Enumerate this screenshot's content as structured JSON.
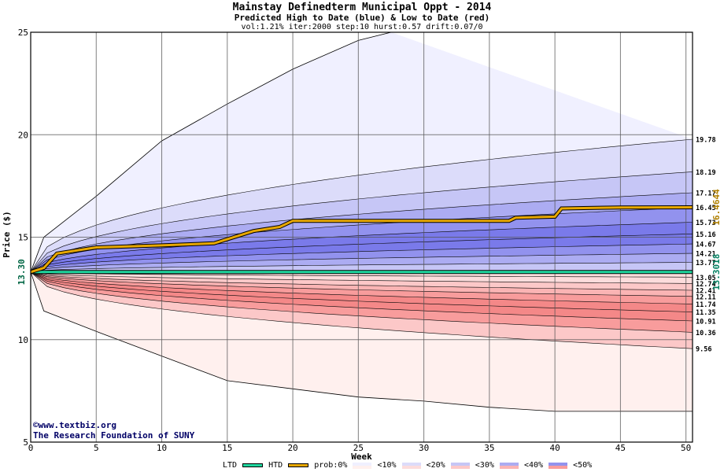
{
  "header": {
    "title": "Mainstay Definedterm Municipal Oppt - 2014",
    "subtitle": "Predicted High to Date (blue) &  Low to Date (red)",
    "params": "vol:1.21% iter:2000 step:10 hurst:0.57 drift:0.07/0"
  },
  "credit": {
    "line1": "©www.textbiz.org",
    "line2": "The Research Foundation of SUNY"
  },
  "legend": {
    "ltd": "LTD",
    "htd": "HTD",
    "prob": "prob:0%",
    "b10": "<10%",
    "b20": "<20%",
    "b30": "<30%",
    "b40": "<40%",
    "b50": "<50%"
  },
  "chart_data": {
    "type": "area",
    "xlabel": "Week",
    "ylabel": "Price ($)",
    "xlim": [
      0,
      50.5
    ],
    "ylim": [
      5,
      25
    ],
    "xticks": [
      0,
      5,
      10,
      15,
      20,
      25,
      30,
      35,
      40,
      45,
      50
    ],
    "yticks": [
      5,
      10,
      15,
      20,
      25
    ],
    "grid": true,
    "start_price": 13.3,
    "start_label": "13.30",
    "colors": {
      "upper_shades": [
        "#f0f0ff",
        "#dcdcfa",
        "#c6c6f6",
        "#acacf2",
        "#9292ee",
        "#7a7aea"
      ],
      "lower_shades": [
        "#fff0ee",
        "#fcdcdc",
        "#fcc8c8",
        "#fab4b4",
        "#f89c9c",
        "#f48888"
      ],
      "htd_line": "#e8a800",
      "ltd_line": "#20d8a0",
      "htd_label": "#b08000",
      "ltd_label": "#008060"
    },
    "percentile_end_values": [
      19.78,
      18.19,
      17.17,
      16.45,
      15.73,
      15.16,
      14.67,
      14.21,
      13.77,
      13.05,
      12.74,
      12.41,
      12.11,
      11.74,
      11.35,
      10.91,
      10.36,
      9.56
    ],
    "percentile_end_labels": [
      "19.78",
      "18.19",
      "17.17",
      "16.45",
      "15.73",
      "15.16",
      "14.67",
      "14.21",
      "13.77",
      "13.05",
      "12.74",
      "12.41",
      "12.11",
      "11.74",
      "11.35",
      "10.91",
      "10.36",
      "9.56"
    ],
    "envelope_max": [
      [
        0,
        13.3
      ],
      [
        1,
        15.0
      ],
      [
        3,
        16.0
      ],
      [
        5,
        17.0
      ],
      [
        10,
        19.7
      ],
      [
        15,
        21.5
      ],
      [
        20,
        23.2
      ],
      [
        25,
        24.6
      ],
      [
        27.5,
        25
      ]
    ],
    "envelope_min": [
      [
        0,
        13.3
      ],
      [
        1,
        11.4
      ],
      [
        3,
        10.9
      ],
      [
        5,
        10.4
      ],
      [
        10,
        9.2
      ],
      [
        15,
        8.0
      ],
      [
        20,
        7.6
      ],
      [
        25,
        7.2
      ],
      [
        30,
        7.0
      ],
      [
        35,
        6.7
      ],
      [
        40,
        6.5
      ],
      [
        50.5,
        6.5
      ]
    ],
    "htd_median": [
      [
        0,
        13.3
      ],
      [
        1,
        13.5
      ],
      [
        2,
        14.2
      ],
      [
        5,
        14.5
      ],
      [
        10,
        14.6
      ],
      [
        14,
        14.7
      ],
      [
        15,
        14.9
      ],
      [
        17,
        15.3
      ],
      [
        19,
        15.5
      ],
      [
        20,
        15.8
      ],
      [
        25,
        15.8
      ],
      [
        36.5,
        15.8
      ],
      [
        37,
        15.95
      ],
      [
        40,
        16.0
      ],
      [
        40.5,
        16.4
      ],
      [
        45,
        16.45
      ],
      [
        50.5,
        16.46
      ]
    ],
    "htd_end_value": "16.4644",
    "ltd_median": [
      [
        0,
        13.3
      ],
      [
        50.5,
        13.3
      ]
    ],
    "ltd_end_value": "13.3018"
  }
}
